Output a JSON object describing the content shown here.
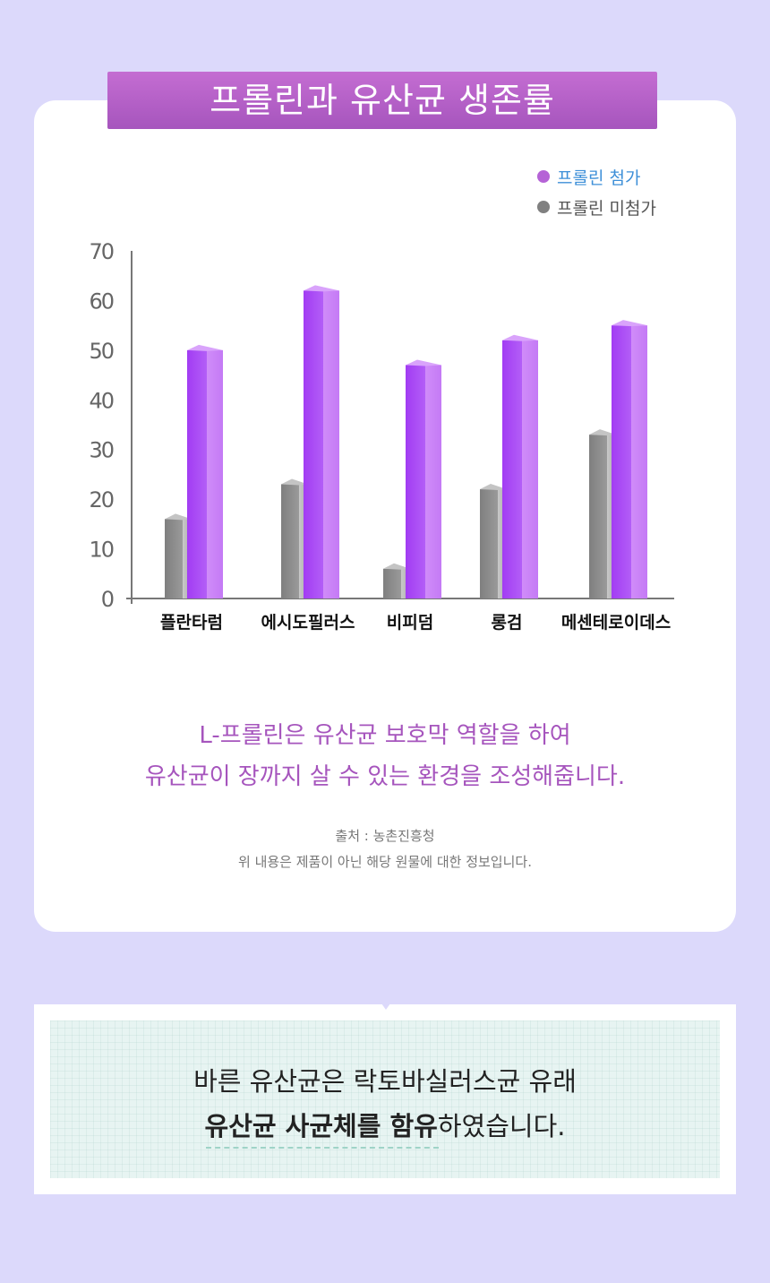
{
  "title": "프롤린과 유산균 생존률",
  "legend": [
    {
      "label": "프롤린 첨가",
      "color": "#b563d6"
    },
    {
      "label": "프롤린 미첨가",
      "color": "#808080"
    }
  ],
  "chart_data": {
    "type": "bar",
    "categories": [
      "플란타럼",
      "에시도필러스",
      "비피덤",
      "롱검",
      "메센테로이데스"
    ],
    "series": [
      {
        "name": "프롤린 미첨가",
        "values": [
          16,
          23,
          6,
          22,
          33
        ],
        "color": "#8a8a8a"
      },
      {
        "name": "프롤린 첨가",
        "values": [
          50,
          62,
          47,
          52,
          55
        ],
        "color": "#a64cf2"
      }
    ],
    "yticks": [
      "0",
      "10",
      "20",
      "30",
      "40",
      "50",
      "60",
      "70"
    ],
    "ylim": [
      0,
      70
    ],
    "grid": false,
    "legend_position": "top-right"
  },
  "description": {
    "line1": "L-프롤린은 유산균 보호막 역할을 하여",
    "line2": "유산균이 장까지 살 수 있는 환경을 조성해줍니다."
  },
  "source": {
    "line1": "출처 : 농촌진흥청",
    "line2": "위 내용은 제품이 아닌 해당 원물에 대한 정보입니다."
  },
  "bottom": {
    "line1": "바른 유산균은 락토바실러스균 유래",
    "line2_bold": "유산균 사균체를 함유",
    "line2_rest": "하였습니다."
  }
}
